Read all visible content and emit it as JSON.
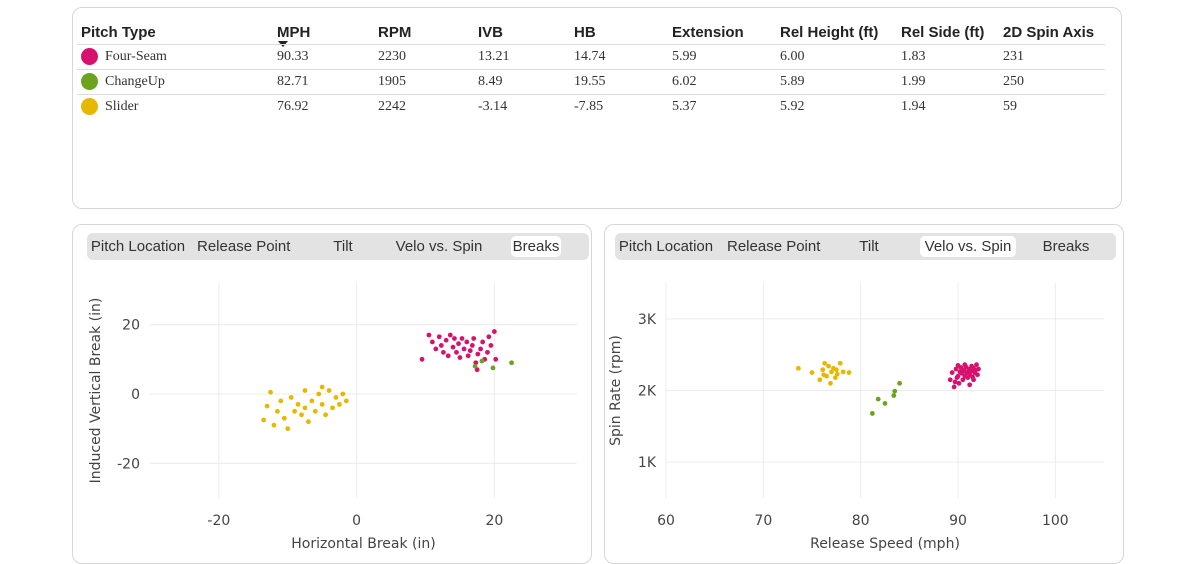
{
  "table": {
    "headers": [
      "Pitch Type",
      "MPH",
      "RPM",
      "IVB",
      "HB",
      "Extension",
      "Rel Height (ft)",
      "Rel Side (ft)",
      "2D Spin Axis"
    ],
    "rows": [
      {
        "name": "Four-Seam",
        "color": "#d6126e",
        "cells": [
          "90.33",
          "2230",
          "13.21",
          "14.74",
          "5.99",
          "6.00",
          "1.83",
          "231"
        ]
      },
      {
        "name": "ChangeUp",
        "color": "#6aa41d",
        "cells": [
          "82.71",
          "1905",
          "8.49",
          "19.55",
          "6.02",
          "5.89",
          "1.99",
          "250"
        ]
      },
      {
        "name": "Slider",
        "color": "#e6b800",
        "cells": [
          "76.92",
          "2242",
          "-3.14",
          "-7.85",
          "5.37",
          "5.92",
          "1.94",
          "59"
        ]
      }
    ]
  },
  "left_panel": {
    "tabs": [
      "Pitch Location",
      "Release Point",
      "Tilt",
      "Velo vs. Spin",
      "Breaks"
    ],
    "active_tab": "Breaks"
  },
  "right_panel": {
    "tabs": [
      "Pitch Location",
      "Release Point",
      "Tilt",
      "Velo vs. Spin",
      "Breaks"
    ],
    "active_tab": "Velo vs. Spin"
  },
  "chart_data": [
    {
      "type": "scatter",
      "title": "",
      "xlabel": "Horizontal Break (in)",
      "ylabel": "Induced Vertical Break (in)",
      "xlim": [
        -30,
        32
      ],
      "ylim": [
        -30,
        32
      ],
      "xticks": [
        -20,
        0,
        20
      ],
      "yticks": [
        -20,
        0,
        20
      ],
      "tick_labels_x": [
        "-20",
        "0",
        "20"
      ],
      "tick_labels_y": [
        "-20",
        "0",
        "20"
      ],
      "series": [
        {
          "color": "#d6126e",
          "points": [
            [
              9.5,
              10
            ],
            [
              10.5,
              17
            ],
            [
              11,
              15
            ],
            [
              11.5,
              13
            ],
            [
              12,
              16.5
            ],
            [
              12.3,
              14
            ],
            [
              12.6,
              12
            ],
            [
              13,
              15.5
            ],
            [
              13.3,
              11
            ],
            [
              13.6,
              17
            ],
            [
              14,
              13.5
            ],
            [
              14.2,
              16
            ],
            [
              14.5,
              12
            ],
            [
              14.8,
              14.5
            ],
            [
              15,
              10.5
            ],
            [
              15.3,
              16
            ],
            [
              15.6,
              13
            ],
            [
              16,
              15
            ],
            [
              16.2,
              11
            ],
            [
              16.5,
              12.5
            ],
            [
              16.8,
              14
            ],
            [
              17,
              16
            ],
            [
              17.3,
              9
            ],
            [
              17.6,
              11.5
            ],
            [
              18,
              13
            ],
            [
              18.3,
              15
            ],
            [
              18.6,
              10
            ],
            [
              19,
              12
            ],
            [
              19.2,
              16.5
            ],
            [
              19.5,
              14
            ],
            [
              20,
              18
            ],
            [
              20.2,
              10
            ],
            [
              17.5,
              7
            ]
          ]
        },
        {
          "color": "#6aa41d",
          "points": [
            [
              17.2,
              8
            ],
            [
              18.2,
              9.5
            ],
            [
              19.8,
              7.5
            ],
            [
              22.5,
              9
            ]
          ]
        },
        {
          "color": "#e6b800",
          "points": [
            [
              -13.5,
              -7.5
            ],
            [
              -13,
              -3.5
            ],
            [
              -12.5,
              0.5
            ],
            [
              -12,
              -9
            ],
            [
              -11.5,
              -5
            ],
            [
              -11,
              -2
            ],
            [
              -10.5,
              -7
            ],
            [
              -10,
              -10
            ],
            [
              -9.5,
              -1
            ],
            [
              -9,
              -5
            ],
            [
              -8.5,
              -3
            ],
            [
              -8,
              -6
            ],
            [
              -7.5,
              1
            ],
            [
              -7.5,
              -4
            ],
            [
              -7,
              -8
            ],
            [
              -6.5,
              -2
            ],
            [
              -6,
              -5
            ],
            [
              -5.5,
              0
            ],
            [
              -5,
              -3
            ],
            [
              -5,
              2
            ],
            [
              -4.5,
              -6
            ],
            [
              -4,
              1
            ],
            [
              -3.5,
              -4
            ],
            [
              -3,
              -1
            ],
            [
              -2.5,
              -3
            ],
            [
              -2,
              0
            ],
            [
              -1.5,
              -2
            ]
          ]
        }
      ]
    },
    {
      "type": "scatter",
      "title": "",
      "xlabel": "Release Speed (mph)",
      "ylabel": "Spin Rate (rpm)",
      "xlim": [
        60,
        105
      ],
      "ylim": [
        500,
        3500
      ],
      "xticks": [
        60,
        70,
        80,
        90,
        100
      ],
      "yticks": [
        1000,
        2000,
        3000
      ],
      "tick_labels_x": [
        "60",
        "70",
        "80",
        "90",
        "100"
      ],
      "tick_labels_y": [
        "1K",
        "2K",
        "3K"
      ],
      "series": [
        {
          "color": "#d6126e",
          "points": [
            [
              89.2,
              2150
            ],
            [
              89.4,
              2250
            ],
            [
              89.6,
              2050
            ],
            [
              89.8,
              2300
            ],
            [
              89.9,
              2180
            ],
            [
              90,
              2200
            ],
            [
              90,
              2350
            ],
            [
              90.1,
              2100
            ],
            [
              90.2,
              2260
            ],
            [
              90.3,
              2320
            ],
            [
              90.4,
              2240
            ],
            [
              90.5,
              2150
            ],
            [
              90.6,
              2280
            ],
            [
              90.7,
              2200
            ],
            [
              90.8,
              2330
            ],
            [
              90.9,
              2250
            ],
            [
              91,
              2180
            ],
            [
              91.1,
              2300
            ],
            [
              91.2,
              2220
            ],
            [
              91.3,
              2270
            ],
            [
              91.4,
              2340
            ],
            [
              91.5,
              2190
            ],
            [
              91.6,
              2310
            ],
            [
              91.7,
              2250
            ],
            [
              91.8,
              2280
            ],
            [
              91.9,
              2360
            ],
            [
              92,
              2220
            ],
            [
              92.1,
              2300
            ],
            [
              91.2,
              2080
            ],
            [
              89.7,
              2120
            ],
            [
              90.7,
              2360
            ],
            [
              91.6,
              2150
            ]
          ]
        },
        {
          "color": "#6aa41d",
          "points": [
            [
              81.2,
              1680
            ],
            [
              81.8,
              1880
            ],
            [
              82.5,
              1820
            ],
            [
              83.4,
              1930
            ],
            [
              83.5,
              1990
            ],
            [
              84,
              2100
            ]
          ]
        },
        {
          "color": "#e6b800",
          "points": [
            [
              73.6,
              2310
            ],
            [
              75,
              2250
            ],
            [
              75.8,
              2150
            ],
            [
              76.1,
              2290
            ],
            [
              76.3,
              2380
            ],
            [
              76.5,
              2200
            ],
            [
              76.7,
              2340
            ],
            [
              76.9,
              2100
            ],
            [
              77,
              2260
            ],
            [
              77.2,
              2310
            ],
            [
              77.4,
              2180
            ],
            [
              77.6,
              2230
            ],
            [
              77.9,
              2380
            ],
            [
              78.2,
              2260
            ],
            [
              78.8,
              2250
            ],
            [
              76.2,
              2220
            ],
            [
              77.5,
              2290
            ]
          ]
        }
      ]
    }
  ]
}
